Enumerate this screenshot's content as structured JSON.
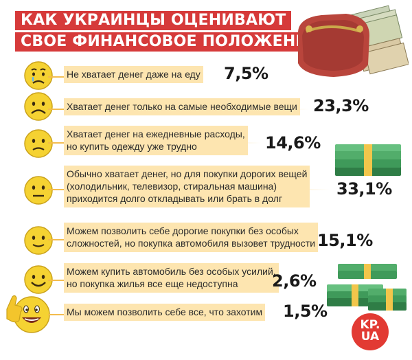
{
  "title": {
    "line1": "КАК УКРАИНЦЫ ОЦЕНИВАЮТ",
    "line2": "СВОЕ ФИНАНСОВОЕ ПОЛОЖЕНИЕ"
  },
  "chart_data": {
    "type": "table",
    "title": "КАК УКРАИНЦЫ ОЦЕНИВАЮТ СВОЕ ФИНАНСОВОЕ ПОЛОЖЕНИЕ",
    "categories": [
      [
        "Не хватает денег даже на еду"
      ],
      [
        "Хватает денег только на самые необходимые вещи"
      ],
      [
        "Хватает денег на ежедневные расходы,",
        "но купить одежду уже трудно"
      ],
      [
        "Обычно хватает денег, но для покупки дорогих вещей",
        "(холодильник, телевизор, стиральная машина)",
        "приходится долго откладывать или брать в долг"
      ],
      [
        "Можем позволить себе дорогие покупки без особых",
        "сложностей, но покупка автомобиля вызовет трудности"
      ],
      [
        "Можем купить автомобиль без особых усилий,",
        "но покупка жилья все еще недоступна"
      ],
      [
        "Мы можем позволить себе все, что захотим"
      ]
    ],
    "values": [
      7.5,
      23.3,
      14.6,
      33.1,
      15.1,
      2.6,
      1.5
    ],
    "value_labels": [
      "7,5%",
      "23,3%",
      "14,6%",
      "33,1%",
      "15,1%",
      "2,6%",
      "1,5%"
    ],
    "faces": [
      "crying",
      "sad",
      "unhappy",
      "neutral",
      "slight-smile",
      "smile",
      "thumbs-up"
    ]
  },
  "logo": {
    "line1": "KP.",
    "line2": "UA"
  },
  "colors": {
    "title_bg": "#d63a3a",
    "label_bg": "#fde5b0",
    "bar": "#f3bb4a",
    "face": "#f5d232",
    "money": "#3f9a5a",
    "logo": "#e23a33"
  },
  "icons": [
    "wallet-icon",
    "money-stack-icon",
    "money-stack-large-icon"
  ]
}
